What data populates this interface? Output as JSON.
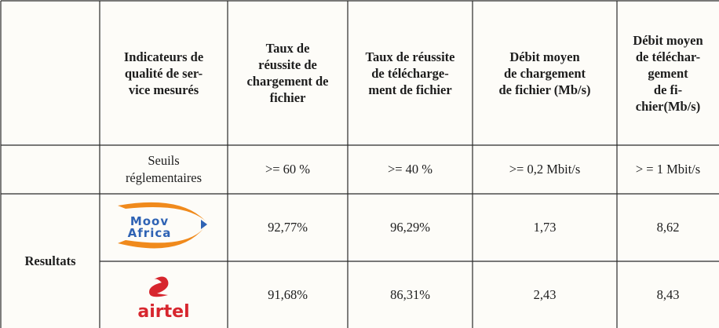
{
  "table": {
    "header": [
      [
        "Indicateurs de",
        "qualité de ser-",
        "vice mesurés"
      ],
      [
        "Taux de",
        "réussite de",
        "chargement de",
        "fichier"
      ],
      [
        "Taux de réussite",
        "de télécharge-",
        "ment de fichier"
      ],
      [
        "Débit moyen",
        "de chargement",
        "de fichier (Mb/s)"
      ],
      [
        "Débit moyen",
        "de téléchar-",
        "gement",
        "de fi-",
        "chier(Mb/s)"
      ]
    ],
    "thresholds": {
      "label": [
        "Seuils",
        "réglementaires"
      ],
      "values": [
        ">= 60 %",
        ">= 40 %",
        ">= 0,2 Mbit/s",
        "> = 1 Mbit/s"
      ]
    },
    "results": {
      "label": "Resultats",
      "operators": [
        {
          "logo": [
            "Moov",
            "Africa"
          ],
          "values": [
            "92,77%",
            "96,29%",
            "1,73",
            "8,62"
          ]
        },
        {
          "logo": [
            "airtel"
          ],
          "values": [
            "91,68%",
            "86,31%",
            "2,43",
            "8,43"
          ]
        }
      ]
    }
  }
}
